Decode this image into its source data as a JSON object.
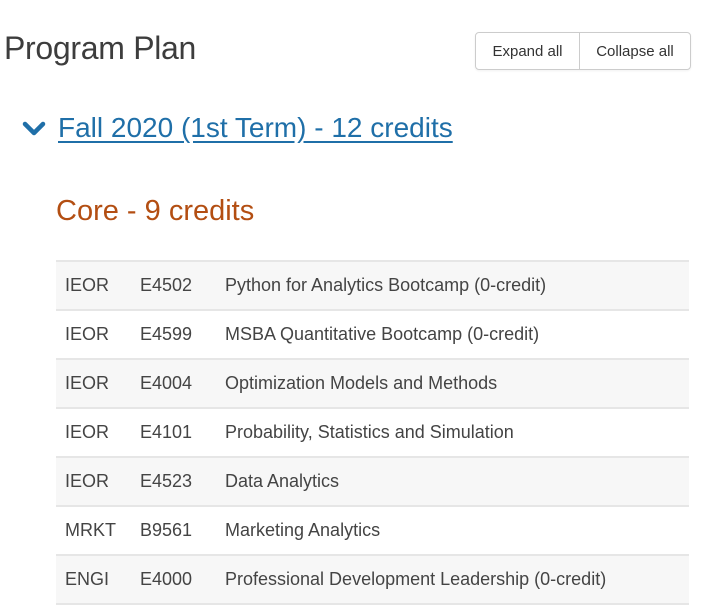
{
  "header": {
    "title": "Program Plan",
    "expand_all": "Expand all",
    "collapse_all": "Collapse all"
  },
  "term": {
    "label": "Fall 2020 (1st Term) - 12 credits",
    "icon": "chevron-down-icon",
    "expanded": true
  },
  "section": {
    "title": "Core - 9 credits"
  },
  "colors": {
    "link": "#1f6fa8",
    "section_heading": "#b34e12"
  },
  "courses": [
    {
      "dept": "IEOR",
      "number": "E4502",
      "name": "Python for Analytics Bootcamp (0-credit)"
    },
    {
      "dept": "IEOR",
      "number": "E4599",
      "name": "MSBA Quantitative Bootcamp (0-credit)"
    },
    {
      "dept": "IEOR",
      "number": "E4004",
      "name": "Optimization Models and Methods"
    },
    {
      "dept": "IEOR",
      "number": "E4101",
      "name": "Probability, Statistics and Simulation"
    },
    {
      "dept": "IEOR",
      "number": "E4523",
      "name": "Data Analytics"
    },
    {
      "dept": "MRKT",
      "number": "B9561",
      "name": "Marketing Analytics"
    },
    {
      "dept": "ENGI",
      "number": "E4000",
      "name": "Professional Development Leadership (0-credit)"
    }
  ]
}
